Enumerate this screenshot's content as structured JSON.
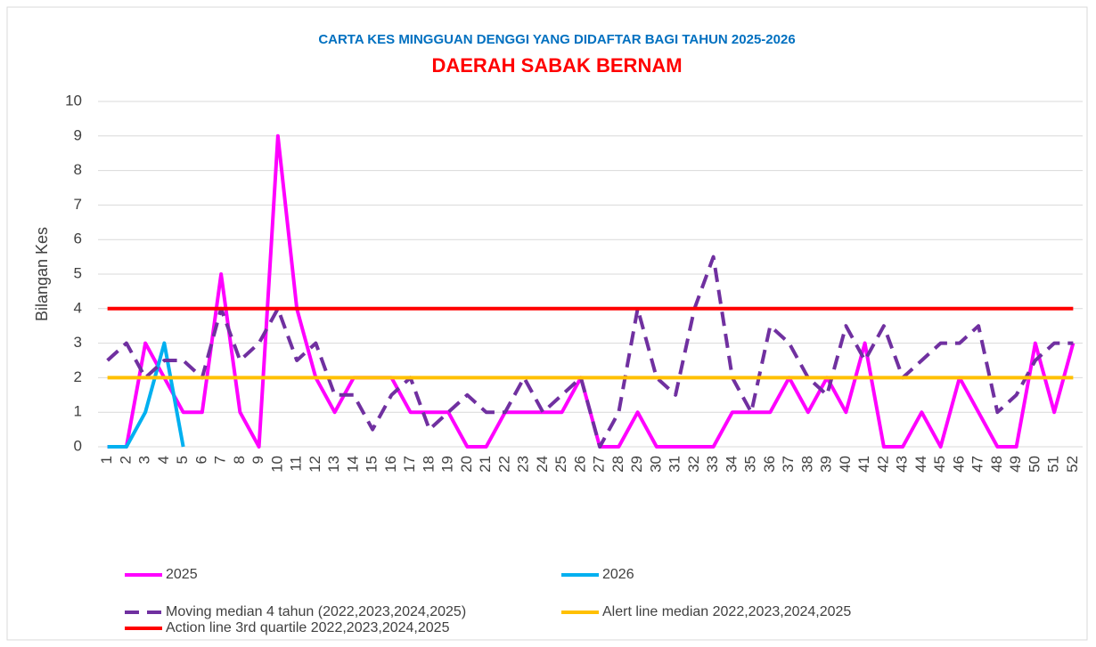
{
  "chart_data": {
    "type": "line",
    "title": "CARTA KES MINGGUAN DENGGI YANG DIDAFTAR BAGI TAHUN 2025-2026",
    "subtitle": "DAERAH SABAK BERNAM",
    "y_label": "Bilangan Kes",
    "categories": [
      1,
      2,
      3,
      4,
      5,
      6,
      7,
      8,
      9,
      10,
      11,
      12,
      13,
      14,
      15,
      16,
      17,
      18,
      19,
      20,
      21,
      22,
      23,
      24,
      25,
      26,
      27,
      28,
      29,
      30,
      31,
      32,
      33,
      34,
      35,
      36,
      37,
      38,
      39,
      40,
      41,
      42,
      43,
      44,
      45,
      46,
      47,
      48,
      49,
      50,
      51,
      52
    ],
    "ylim": [
      0,
      10
    ],
    "yticks": [
      0,
      1,
      2,
      3,
      4,
      5,
      6,
      7,
      8,
      9,
      10
    ],
    "grid": true,
    "legend": "bottom",
    "series": [
      {
        "name": "2025",
        "color": "#ff00ff",
        "dashed": false,
        "values": [
          0,
          0,
          3,
          2,
          1,
          1,
          5,
          1,
          0,
          9,
          4,
          2,
          1,
          2,
          2,
          2,
          1,
          1,
          1,
          0,
          0,
          1,
          1,
          1,
          1,
          2,
          0,
          0,
          1,
          0,
          0,
          0,
          0,
          1,
          1,
          1,
          2,
          1,
          2,
          1,
          3,
          0,
          0,
          1,
          0,
          2,
          1,
          0,
          0,
          3,
          1,
          3
        ]
      },
      {
        "name": "2026",
        "color": "#00b0f0",
        "dashed": false,
        "values": [
          0,
          0,
          1,
          3,
          0,
          null,
          null,
          null,
          null,
          null,
          null,
          null,
          null,
          null,
          null,
          null,
          null,
          null,
          null,
          null,
          null,
          null,
          null,
          null,
          null,
          null,
          null,
          null,
          null,
          null,
          null,
          null,
          null,
          null,
          null,
          null,
          null,
          null,
          null,
          null,
          null,
          null,
          null,
          null,
          null,
          null,
          null,
          null,
          null,
          null,
          null,
          null
        ]
      },
      {
        "name": "Moving median 4 tahun (2022,2023,2024,2025)",
        "color": "#7030a0",
        "dashed": true,
        "values": [
          2.5,
          3,
          2,
          2.5,
          2.5,
          2,
          4,
          2.5,
          3,
          4,
          2.5,
          3,
          1.5,
          1.5,
          0.5,
          1.5,
          2,
          0.5,
          1,
          1.5,
          1,
          1,
          2,
          1,
          1.5,
          2,
          0,
          1,
          4,
          2,
          1.5,
          4,
          5.5,
          2,
          1,
          3.5,
          3,
          2,
          1.5,
          3.5,
          2.5,
          3.5,
          2,
          2.5,
          3,
          3,
          3.5,
          1,
          1.5,
          2.5,
          3,
          3
        ]
      },
      {
        "name": "Alert line median 2022,2023,2024,2025",
        "color": "#ffc000",
        "dashed": false,
        "values": [
          2,
          2,
          2,
          2,
          2,
          2,
          2,
          2,
          2,
          2,
          2,
          2,
          2,
          2,
          2,
          2,
          2,
          2,
          2,
          2,
          2,
          2,
          2,
          2,
          2,
          2,
          2,
          2,
          2,
          2,
          2,
          2,
          2,
          2,
          2,
          2,
          2,
          2,
          2,
          2,
          2,
          2,
          2,
          2,
          2,
          2,
          2,
          2,
          2,
          2,
          2,
          2
        ]
      },
      {
        "name": "Action line 3rd quartile 2022,2023,2024,2025",
        "color": "#ff0000",
        "dashed": false,
        "values": [
          4,
          4,
          4,
          4,
          4,
          4,
          4,
          4,
          4,
          4,
          4,
          4,
          4,
          4,
          4,
          4,
          4,
          4,
          4,
          4,
          4,
          4,
          4,
          4,
          4,
          4,
          4,
          4,
          4,
          4,
          4,
          4,
          4,
          4,
          4,
          4,
          4,
          4,
          4,
          4,
          4,
          4,
          4,
          4,
          4,
          4,
          4,
          4,
          4,
          4,
          4,
          4
        ]
      }
    ]
  }
}
